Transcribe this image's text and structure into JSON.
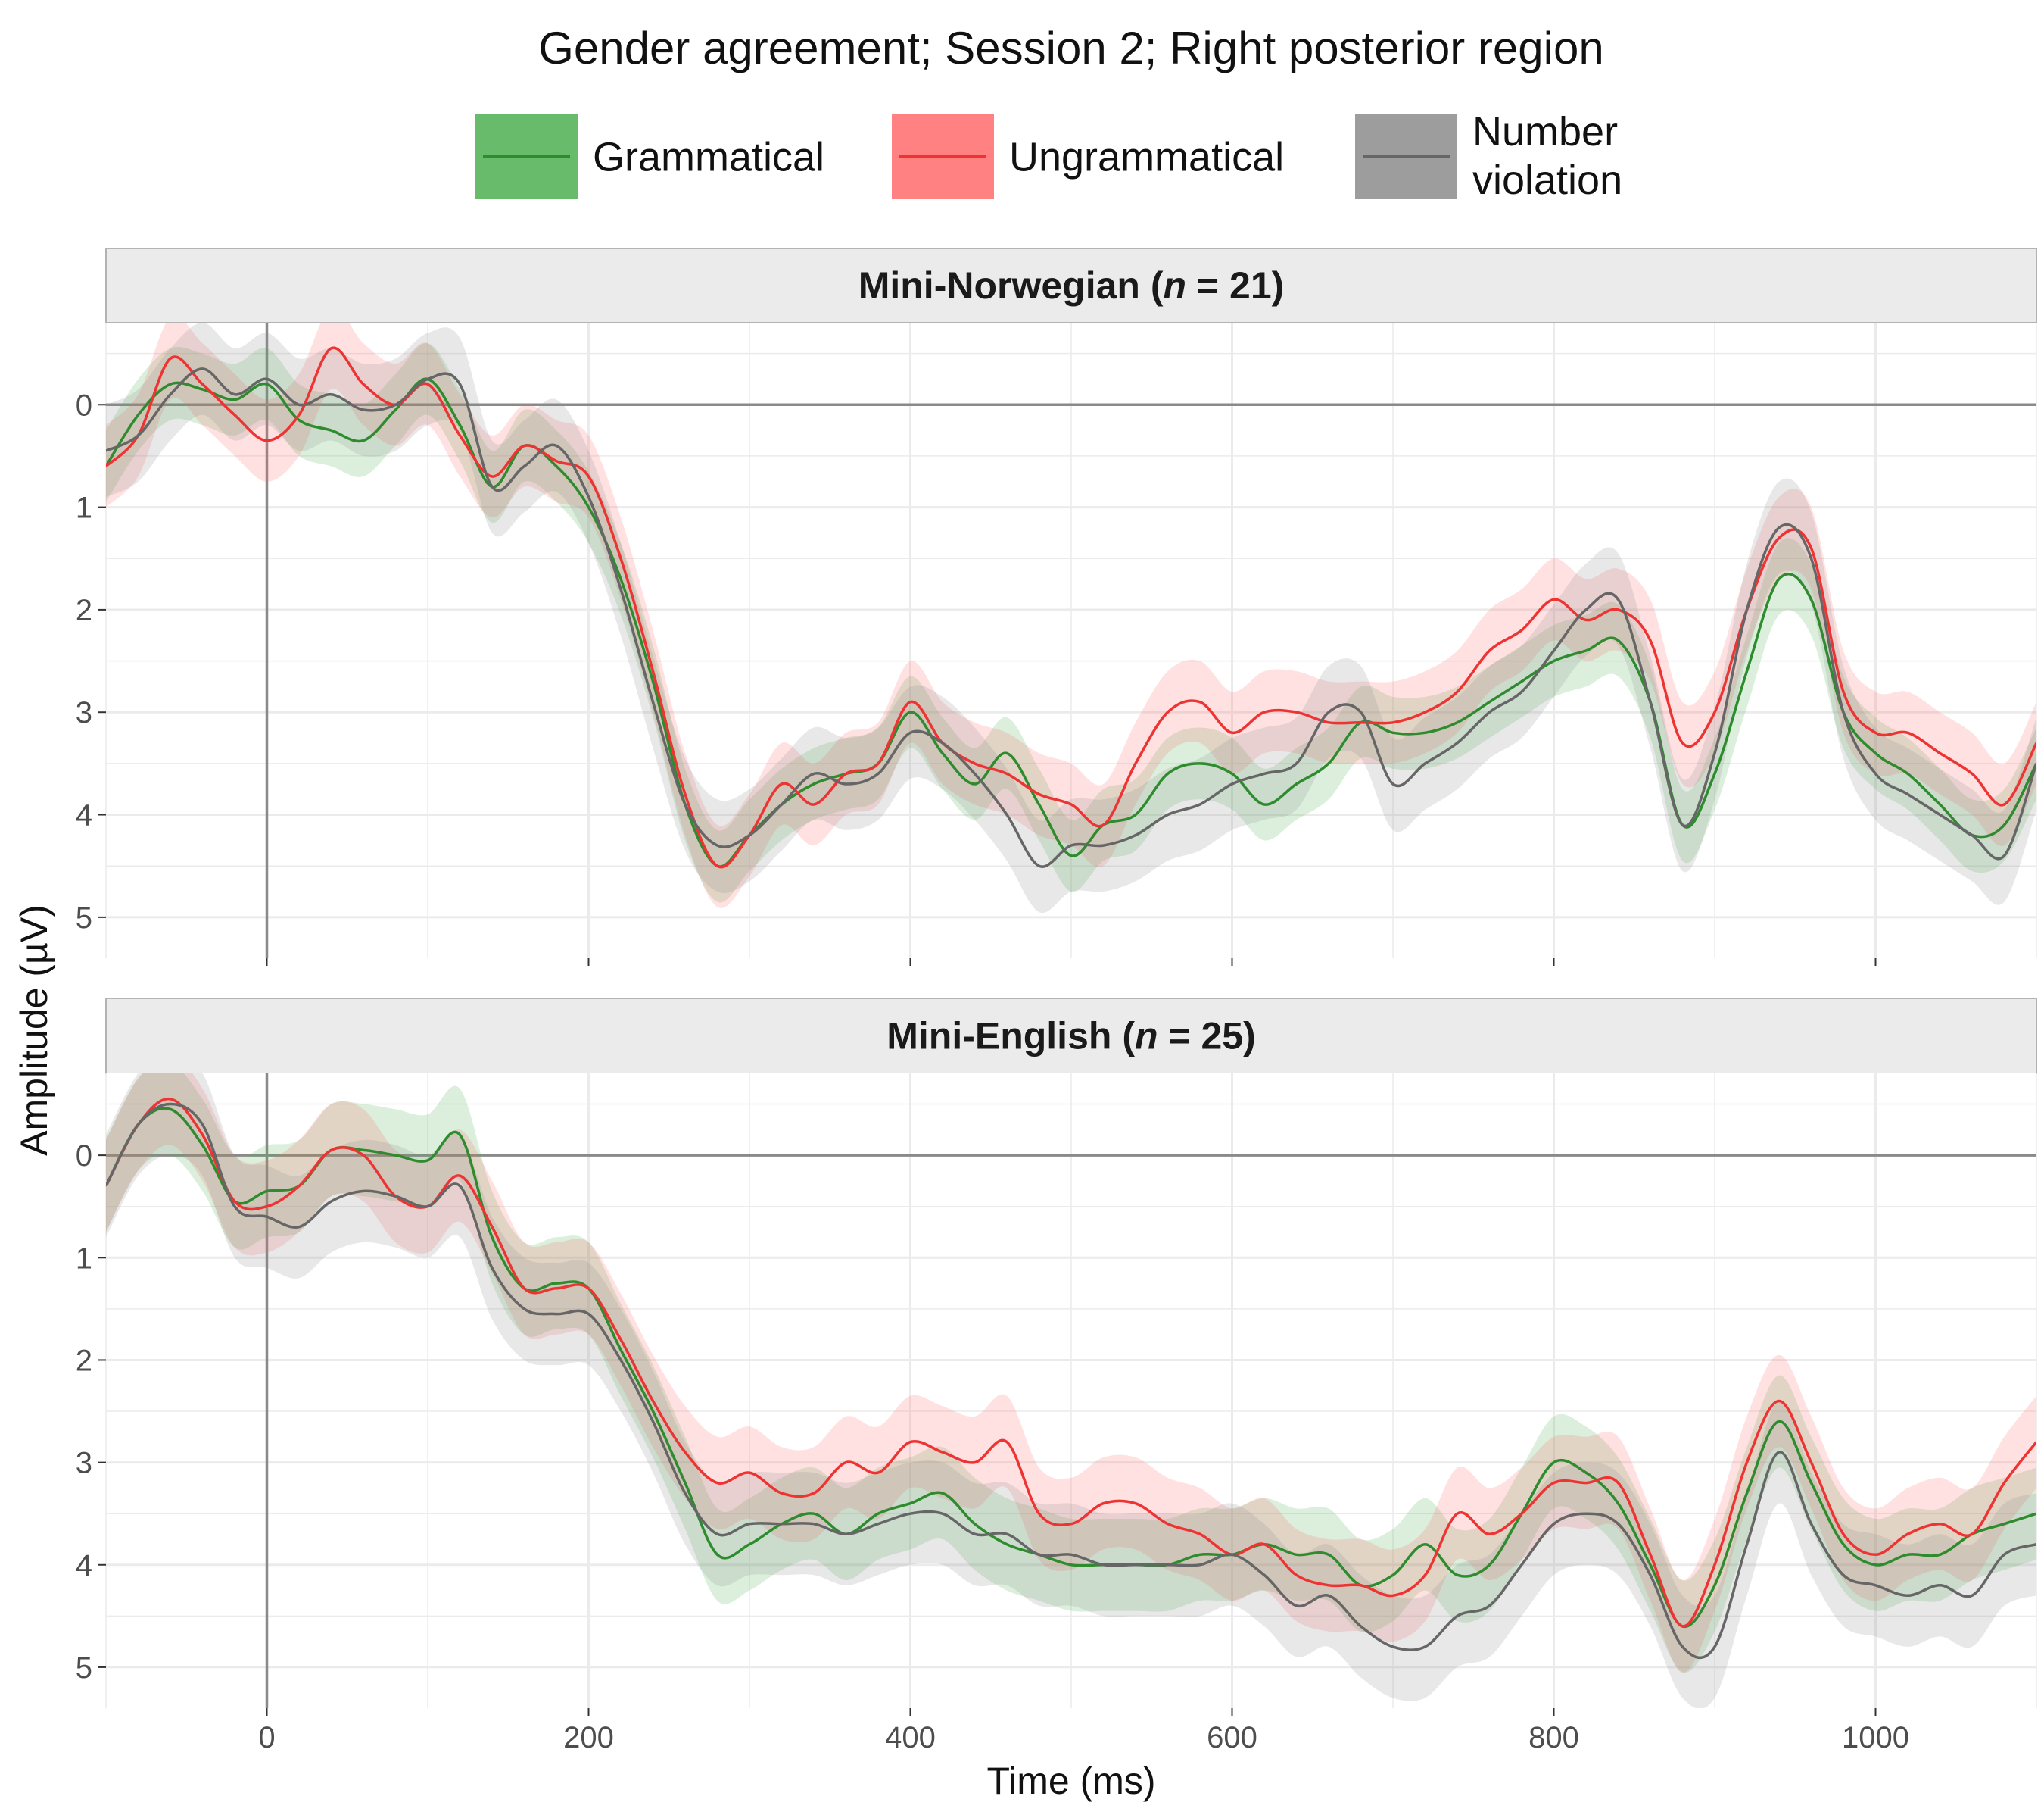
{
  "colors": {
    "grammatical": "#2e8b2e",
    "ungrammatical": "#ee3333",
    "number_violation": "#666666",
    "band_grammatical": "#4caf50",
    "band_ungrammatical": "#ff6b6b",
    "band_number_violation": "#8c8c8c",
    "panel_bg": "#ffffff",
    "grid": "#ebebeb",
    "strip_bg": "#ebebeb",
    "strip_border": "#b3b3b3",
    "ref_line": "#8a8a8a"
  },
  "chart_data": {
    "type": "line",
    "title": "Gender agreement; Session 2; Right posterior region",
    "xlabel": "Time (ms)",
    "ylabel": "Amplitude (µV)",
    "xlim": [
      -100,
      1100
    ],
    "ylim": [
      -0.8,
      5.4
    ],
    "y_reversed": true,
    "grid": true,
    "legend_position": "top",
    "x_ticks": [
      0,
      200,
      400,
      600,
      800,
      1000
    ],
    "y_ticks": [
      0,
      1,
      2,
      3,
      4,
      5
    ],
    "legend": [
      {
        "key": "grammatical",
        "label": "Grammatical"
      },
      {
        "key": "ungrammatical",
        "label": "Ungrammatical"
      },
      {
        "key": "number_violation",
        "label_line1": "Number",
        "label_line2": "violation"
      }
    ],
    "panels": [
      {
        "label_before": "Mini-Norwegian (",
        "label_n": "n",
        "label_after": " = 21)",
        "x": [
          -100,
          -80,
          -60,
          -40,
          -20,
          0,
          20,
          40,
          60,
          80,
          100,
          120,
          140,
          160,
          180,
          200,
          220,
          240,
          260,
          280,
          300,
          320,
          340,
          360,
          380,
          400,
          420,
          440,
          460,
          480,
          500,
          520,
          540,
          560,
          580,
          600,
          620,
          640,
          660,
          680,
          700,
          720,
          740,
          760,
          780,
          800,
          820,
          840,
          860,
          880,
          900,
          920,
          940,
          960,
          980,
          1000,
          1020,
          1040,
          1060,
          1080,
          1100
        ],
        "series": [
          {
            "key": "grammatical",
            "values": [
              0.6,
              0.1,
              -0.2,
              -0.15,
              -0.05,
              -0.2,
              0.15,
              0.25,
              0.35,
              0.05,
              -0.25,
              0.2,
              0.8,
              0.4,
              0.6,
              1.0,
              1.7,
              2.7,
              3.9,
              4.5,
              4.2,
              3.9,
              3.7,
              3.6,
              3.5,
              3.0,
              3.4,
              3.7,
              3.4,
              3.9,
              4.4,
              4.1,
              4.0,
              3.6,
              3.5,
              3.6,
              3.9,
              3.7,
              3.5,
              3.1,
              3.2,
              3.2,
              3.1,
              2.9,
              2.7,
              2.5,
              2.4,
              2.3,
              2.9,
              4.1,
              3.6,
              2.6,
              1.7,
              1.9,
              3.0,
              3.4,
              3.6,
              3.9,
              4.2,
              4.1,
              3.5
            ],
            "band": 0.35
          },
          {
            "key": "ungrammatical",
            "values": [
              0.6,
              0.3,
              -0.45,
              -0.2,
              0.1,
              0.35,
              0.1,
              -0.55,
              -0.2,
              0.0,
              -0.2,
              0.3,
              0.7,
              0.4,
              0.55,
              0.7,
              1.5,
              2.6,
              3.8,
              4.5,
              4.2,
              3.7,
              3.9,
              3.6,
              3.5,
              2.9,
              3.3,
              3.5,
              3.6,
              3.8,
              3.9,
              4.1,
              3.5,
              3.0,
              2.9,
              3.2,
              3.0,
              3.0,
              3.1,
              3.1,
              3.1,
              3.0,
              2.8,
              2.4,
              2.2,
              1.9,
              2.1,
              2.0,
              2.3,
              3.3,
              3.0,
              2.0,
              1.3,
              1.4,
              2.8,
              3.2,
              3.2,
              3.4,
              3.6,
              3.9,
              3.3
            ],
            "band": 0.4
          },
          {
            "key": "number_violation",
            "values": [
              0.45,
              0.3,
              -0.1,
              -0.35,
              -0.1,
              -0.25,
              0.0,
              -0.1,
              0.05,
              0.0,
              -0.25,
              -0.2,
              0.8,
              0.6,
              0.4,
              0.9,
              1.8,
              2.9,
              3.9,
              4.3,
              4.2,
              3.9,
              3.6,
              3.7,
              3.6,
              3.2,
              3.3,
              3.6,
              4.0,
              4.5,
              4.3,
              4.3,
              4.2,
              4.0,
              3.9,
              3.7,
              3.6,
              3.5,
              3.0,
              3.0,
              3.7,
              3.5,
              3.3,
              3.0,
              2.8,
              2.4,
              2.0,
              1.9,
              2.9,
              4.1,
              3.4,
              2.0,
              1.2,
              1.5,
              3.0,
              3.6,
              3.8,
              4.0,
              4.2,
              4.4,
              3.5
            ],
            "band": 0.45
          }
        ]
      },
      {
        "label_before": "Mini-English (",
        "label_n": "n",
        "label_after": " = 25)",
        "x": [
          -100,
          -80,
          -60,
          -40,
          -20,
          0,
          20,
          40,
          60,
          80,
          100,
          120,
          140,
          160,
          180,
          200,
          220,
          240,
          260,
          280,
          300,
          320,
          340,
          360,
          380,
          400,
          420,
          440,
          460,
          480,
          500,
          520,
          540,
          560,
          580,
          600,
          620,
          640,
          660,
          680,
          700,
          720,
          740,
          760,
          780,
          800,
          820,
          840,
          860,
          880,
          900,
          920,
          940,
          960,
          980,
          1000,
          1020,
          1040,
          1060,
          1080,
          1100
        ],
        "series": [
          {
            "key": "grammatical",
            "values": [
              0.3,
              -0.3,
              -0.45,
              -0.1,
              0.45,
              0.35,
              0.3,
              -0.05,
              -0.05,
              0.0,
              0.05,
              -0.2,
              0.8,
              1.3,
              1.25,
              1.3,
              1.9,
              2.5,
              3.2,
              3.9,
              3.8,
              3.6,
              3.5,
              3.7,
              3.5,
              3.4,
              3.3,
              3.6,
              3.8,
              3.9,
              4.0,
              4.0,
              4.0,
              4.0,
              3.9,
              3.9,
              3.8,
              3.9,
              3.9,
              4.2,
              4.1,
              3.8,
              4.1,
              4.0,
              3.5,
              3.0,
              3.1,
              3.4,
              4.0,
              4.6,
              4.2,
              3.3,
              2.6,
              3.2,
              3.8,
              4.0,
              3.9,
              3.9,
              3.7,
              3.6,
              3.5
            ],
            "band": 0.45
          },
          {
            "key": "ungrammatical",
            "values": [
              0.3,
              -0.3,
              -0.55,
              -0.2,
              0.45,
              0.5,
              0.3,
              -0.05,
              0.0,
              0.4,
              0.5,
              0.2,
              0.7,
              1.3,
              1.3,
              1.3,
              1.8,
              2.4,
              2.9,
              3.2,
              3.1,
              3.3,
              3.3,
              3.0,
              3.1,
              2.8,
              2.9,
              3.0,
              2.8,
              3.5,
              3.6,
              3.4,
              3.4,
              3.6,
              3.7,
              3.9,
              3.8,
              4.1,
              4.2,
              4.2,
              4.3,
              4.1,
              3.5,
              3.7,
              3.5,
              3.2,
              3.2,
              3.2,
              3.9,
              4.6,
              4.0,
              3.0,
              2.4,
              3.0,
              3.7,
              3.9,
              3.7,
              3.6,
              3.7,
              3.2,
              2.8
            ],
            "band": 0.45
          },
          {
            "key": "number_violation",
            "values": [
              0.3,
              -0.3,
              -0.5,
              -0.3,
              0.5,
              0.6,
              0.7,
              0.45,
              0.35,
              0.4,
              0.5,
              0.3,
              1.1,
              1.5,
              1.55,
              1.55,
              2.0,
              2.6,
              3.3,
              3.7,
              3.6,
              3.6,
              3.6,
              3.7,
              3.6,
              3.5,
              3.5,
              3.7,
              3.7,
              3.9,
              3.9,
              4.0,
              4.0,
              4.0,
              4.0,
              3.9,
              4.1,
              4.4,
              4.3,
              4.6,
              4.8,
              4.8,
              4.5,
              4.4,
              4.0,
              3.6,
              3.5,
              3.6,
              4.1,
              4.8,
              4.8,
              3.8,
              2.9,
              3.6,
              4.1,
              4.2,
              4.3,
              4.2,
              4.3,
              3.9,
              3.8
            ],
            "band": 0.5
          }
        ]
      }
    ]
  }
}
